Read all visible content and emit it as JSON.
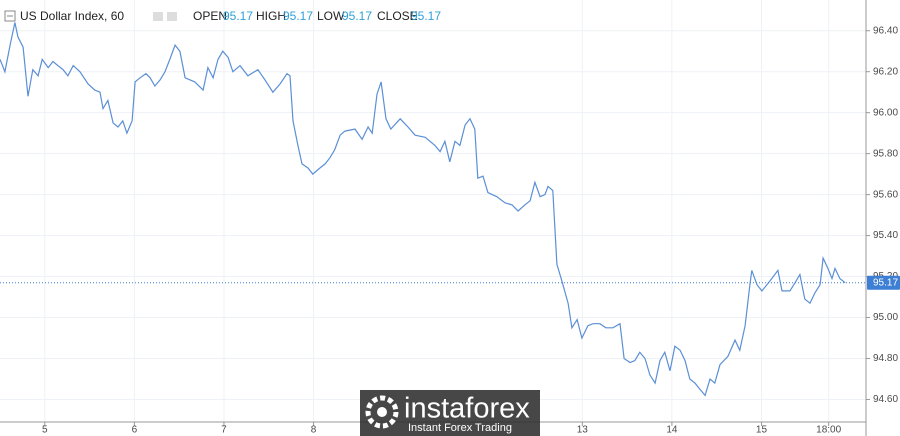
{
  "chart_data": {
    "type": "line",
    "title": "US Dollar Index, 60",
    "ohlc": [
      {
        "label": "OPEN",
        "value": 95.17
      },
      {
        "label": "HIGH",
        "value": 95.17
      },
      {
        "label": "LOW",
        "value": 95.17
      },
      {
        "label": "CLOSE",
        "value": 95.17
      }
    ],
    "last_price": 95.17,
    "watermark": {
      "brand": "instaforex",
      "tagline": "Instant Forex Trading"
    },
    "color": "#5b8fd6",
    "grid": true,
    "xlim": [
      0,
      232
    ],
    "xticks": [
      {
        "value": 12,
        "label": "5"
      },
      {
        "value": 36,
        "label": "6"
      },
      {
        "value": 60,
        "label": "7"
      },
      {
        "value": 84,
        "label": "8"
      },
      {
        "value": 156,
        "label": "13"
      },
      {
        "value": 180,
        "label": "14"
      },
      {
        "value": 204,
        "label": "15"
      },
      {
        "value": 222,
        "label": "18:00"
      }
    ],
    "ylim": [
      94.49,
      96.55
    ],
    "yticks": [
      {
        "value": 94.6,
        "label": "94.60"
      },
      {
        "value": 94.8,
        "label": "94.80"
      },
      {
        "value": 95,
        "label": "95.00"
      },
      {
        "value": 95.2,
        "label": "95.20"
      },
      {
        "value": 95.4,
        "label": "95.40"
      },
      {
        "value": 95.6,
        "label": "95.60"
      },
      {
        "value": 95.8,
        "label": "95.80"
      },
      {
        "value": 96,
        "label": "96.00"
      },
      {
        "value": 96.2,
        "label": "96.20"
      },
      {
        "value": 96.4,
        "label": "96.40"
      }
    ],
    "x": [
      0,
      1.3,
      2.7,
      4.0,
      4.8,
      6.2,
      7.5,
      8.8,
      10.2,
      11.3,
      12.9,
      14.2,
      15.5,
      16.9,
      18.2,
      19.6,
      21.4,
      23.6,
      25.4,
      26.8,
      27.6,
      28.9,
      30.3,
      31.6,
      32.9,
      34.0,
      35.4,
      36.2,
      37.5,
      39.1,
      40.2,
      41.5,
      42.9,
      44.2,
      45.5,
      46.9,
      48.2,
      49.6,
      52.2,
      54.4,
      55.7,
      57.1,
      58.4,
      59.7,
      61.1,
      62.4,
      64.3,
      66.4,
      69.1,
      71.0,
      73.1,
      75.0,
      76.9,
      77.7,
      78.5,
      79.8,
      80.9,
      82.5,
      83.8,
      85.7,
      87.1,
      88.4,
      89.7,
      91.1,
      92.4,
      95.1,
      97.0,
      98.6,
      99.7,
      101.0,
      102.1,
      103.4,
      104.7,
      107.2,
      109.3,
      111.2,
      113.9,
      116.5,
      117.9,
      119.2,
      120.5,
      121.9,
      123.2,
      124.6,
      125.9,
      127.2,
      128.0,
      129.4,
      130.7,
      133.1,
      135.3,
      137.2,
      138.8,
      140.6,
      142.0,
      143.3,
      144.7,
      146.0,
      146.8,
      148.1,
      149.2,
      150.5,
      152.2,
      153.2,
      154.6,
      155.9,
      157.5,
      158.9,
      160.7,
      162.3,
      164.2,
      166.1,
      167.2,
      168.8,
      170.1,
      171.4,
      172.8,
      174.1,
      175.5,
      176.8,
      178.1,
      179.5,
      180.8,
      182.2,
      183.5,
      184.8,
      186.2,
      187.5,
      188.9,
      190.2,
      191.5,
      192.9,
      195.0,
      196.9,
      198.2,
      199.6,
      200.9,
      201.4,
      202.8,
      204.1,
      206.3,
      208.4,
      209.5,
      211.6,
      213.0,
      214.3,
      215.6,
      217.0,
      218.3,
      219.7,
      220.5,
      221.8,
      222.9,
      223.7,
      225.0,
      226.4
    ],
    "values": [
      96.26,
      96.2,
      96.33,
      96.44,
      96.37,
      96.32,
      96.08,
      96.21,
      96.18,
      96.26,
      96.22,
      96.25,
      96.23,
      96.21,
      96.18,
      96.23,
      96.2,
      96.14,
      96.11,
      96.1,
      96.02,
      96.06,
      95.95,
      95.93,
      95.96,
      95.9,
      95.96,
      96.15,
      96.17,
      96.19,
      96.17,
      96.13,
      96.16,
      96.2,
      96.26,
      96.33,
      96.3,
      96.17,
      96.15,
      96.11,
      96.22,
      96.17,
      96.26,
      96.3,
      96.27,
      96.2,
      96.23,
      96.18,
      96.21,
      96.16,
      96.1,
      96.14,
      96.19,
      96.18,
      95.96,
      95.84,
      95.75,
      95.73,
      95.7,
      95.73,
      95.75,
      95.78,
      95.82,
      95.89,
      95.91,
      95.92,
      95.87,
      95.93,
      95.9,
      96.09,
      96.15,
      95.97,
      95.92,
      95.97,
      95.93,
      95.89,
      95.88,
      95.84,
      95.81,
      95.86,
      95.76,
      95.86,
      95.84,
      95.94,
      95.97,
      95.92,
      95.68,
      95.69,
      95.61,
      95.59,
      95.56,
      95.55,
      95.52,
      95.55,
      95.57,
      95.66,
      95.59,
      95.6,
      95.64,
      95.62,
      95.26,
      95.18,
      95.07,
      94.95,
      94.99,
      94.9,
      94.96,
      94.97,
      94.97,
      94.95,
      94.95,
      94.97,
      94.8,
      94.78,
      94.79,
      94.83,
      94.8,
      94.72,
      94.68,
      94.79,
      94.83,
      94.74,
      94.86,
      94.84,
      94.79,
      94.7,
      94.68,
      94.65,
      94.62,
      94.7,
      94.68,
      94.77,
      94.81,
      94.89,
      94.84,
      94.96,
      95.16,
      95.23,
      95.16,
      95.13,
      95.18,
      95.23,
      95.13,
      95.13,
      95.17,
      95.21,
      95.09,
      95.07,
      95.12,
      95.16,
      95.29,
      95.24,
      95.19,
      95.24,
      95.19,
      95.17
    ]
  }
}
